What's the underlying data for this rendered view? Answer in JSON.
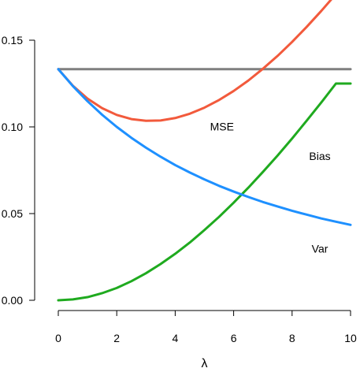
{
  "chart_data": {
    "type": "line",
    "title": "",
    "xlabel": "λ",
    "ylabel": "",
    "xlim": [
      0,
      10
    ],
    "ylim": [
      0,
      0.17
    ],
    "x_ticks": [
      0,
      2,
      4,
      6,
      8,
      10
    ],
    "x_tick_labels": [
      "0",
      "2",
      "4",
      "6",
      "8",
      "10"
    ],
    "y_ticks": [
      0,
      0.05,
      0.1,
      0.15
    ],
    "y_tick_labels": [
      "0.00",
      "0.05",
      "0.10",
      "0.15"
    ],
    "grid": false,
    "legend": "none",
    "x": [
      0,
      0.5,
      1,
      1.5,
      2,
      2.5,
      3,
      3.5,
      4,
      4.5,
      5,
      5.5,
      6,
      6.5,
      7,
      7.5,
      8,
      8.5,
      9,
      9.5,
      10
    ],
    "series": [
      {
        "name": "",
        "color": "#7f7f7f",
        "values": [
          0.1333,
          0.1333,
          0.1333,
          0.1333,
          0.1333,
          0.1333,
          0.1333,
          0.1333,
          0.1333,
          0.1333,
          0.1333,
          0.1333,
          0.1333,
          0.1333,
          0.1333,
          0.1333,
          0.1333,
          0.1333,
          0.1333,
          0.1333,
          0.1333
        ]
      },
      {
        "name": "MSE",
        "color": "#f25a3c",
        "values": [
          0.1333,
          0.1237,
          0.1163,
          0.1108,
          0.1069,
          0.1045,
          0.1035,
          0.1037,
          0.1051,
          0.1076,
          0.1111,
          0.1155,
          0.1207,
          0.1267,
          0.1335,
          0.1409,
          0.149,
          0.1577,
          0.1669,
          0.1766,
          0.186
        ]
      },
      {
        "name": "Bias",
        "color": "#1faa1f",
        "values": [
          0,
          0.0005,
          0.0018,
          0.0041,
          0.0071,
          0.011,
          0.0156,
          0.0209,
          0.0268,
          0.0333,
          0.0405,
          0.0481,
          0.0563,
          0.0649,
          0.074,
          0.0834,
          0.0933,
          0.1036,
          0.1141,
          0.125,
          0.125
        ]
      },
      {
        "name": "Var",
        "color": "#1e90ff",
        "values": [
          0.1333,
          0.1235,
          0.1148,
          0.107,
          0.1,
          0.0937,
          0.088,
          0.0828,
          0.078,
          0.0737,
          0.0697,
          0.066,
          0.0627,
          0.0596,
          0.0567,
          0.0541,
          0.0516,
          0.0494,
          0.0472,
          0.0453,
          0.0435
        ]
      }
    ],
    "annotations": [
      {
        "text": "MSE",
        "x": 5.6,
        "y": 0.1003
      },
      {
        "text": "Bias",
        "x": 8.95,
        "y": 0.0832
      },
      {
        "text": "Var",
        "x": 8.95,
        "y": 0.0298
      }
    ]
  }
}
